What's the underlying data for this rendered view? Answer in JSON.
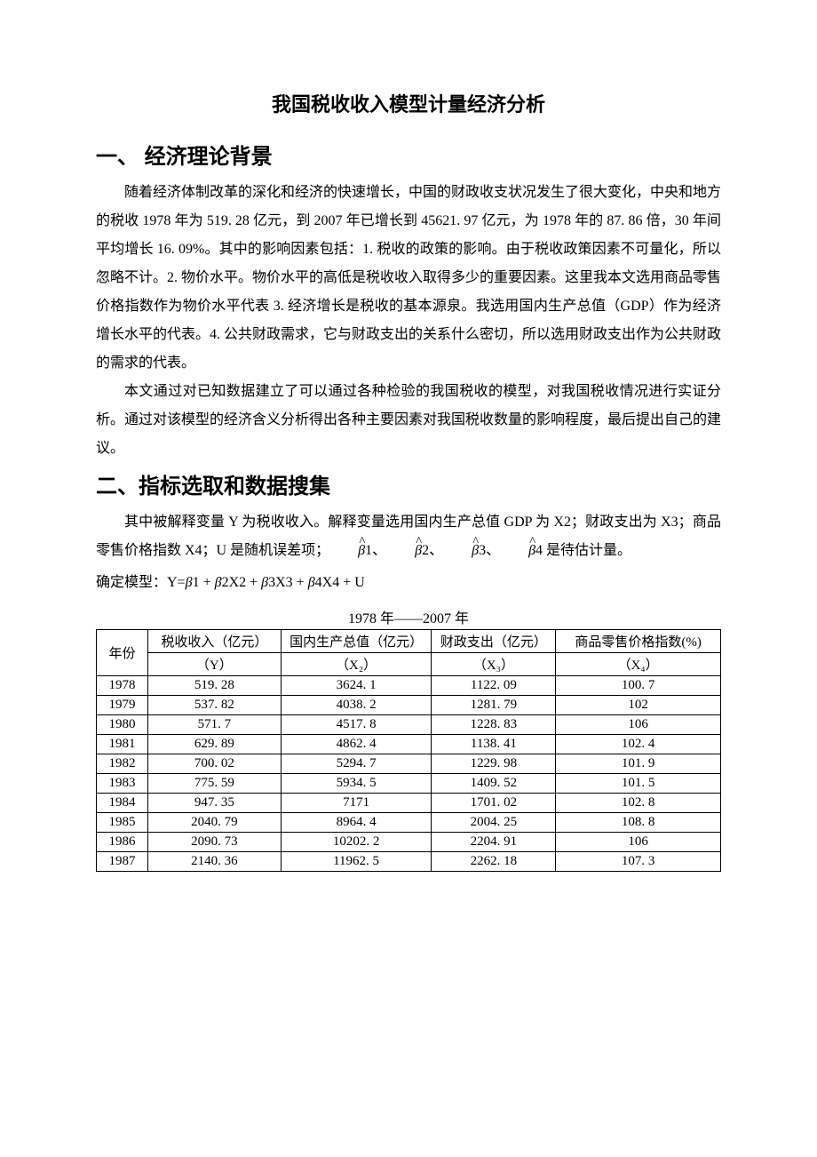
{
  "title": "我国税收收入模型计量经济分析",
  "section1": {
    "heading": "一、 经济理论背景",
    "p1": "随着经济体制改革的深化和经济的快速增长，中国的财政收支状况发生了很大变化，中央和地方的税收 1978 年为 519. 28 亿元，到 2007 年已增长到 45621. 97 亿元，为 1978 年的 87. 86 倍，30 年间平均增长 16. 09%。其中的影响因素包括：1. 税收的政策的影响。由于税收政策因素不可量化，所以忽略不计。2. 物价水平。物价水平的高低是税收收入取得多少的重要因素。这里我本文选用商品零售价格指数作为物价水平代表 3. 经济增长是税收的基本源泉。我选用国内生产总值（GDP）作为经济增长水平的代表。4. 公共财政需求，它与财政支出的关系什么密切，所以选用财政支出作为公共财政的需求的代表。",
    "p2": "本文通过对已知数据建立了可以通过各种检验的我国税收的模型，对我国税收情况进行实证分析。通过对该模型的经济含义分析得出各种主要因素对我国税收数量的影响程度，最后提出自己的建议。"
  },
  "section2": {
    "heading": "二、指标选取和数据搜集",
    "p1_pre": "其中被解释变量 Y 为税收收入。解释变量选用国内生产总值 GDP 为 X2；财政支出为 X3；商品零售价格指数 X4；U 是随机误差项；",
    "p1_mid": "1、",
    "p1_mid2": "2、",
    "p1_mid3": "3、",
    "p1_mid4": "4 是待估计量。",
    "model_label": "确定模型：Y=",
    "model_b1": "1 + ",
    "model_b2": "2X2 + ",
    "model_b3": "3X3 + ",
    "model_b4": "4X4 + U",
    "beta": "β"
  },
  "table": {
    "caption": "1978 年——2007 年",
    "headers": {
      "year": "年份",
      "y_label": "税收收入（亿元）",
      "x2_label": "国内生产总值（亿元）",
      "x3_label": "财政支出（亿元）",
      "x4_label": "商品零售价格指数(%)",
      "y_sym": "（Y）",
      "x2_sym": "（X₂）",
      "x3_sym": "（X₃）",
      "x4_sym": "（X₄）"
    },
    "col_widths": [
      "58px",
      "150px",
      "170px",
      "140px",
      "186px"
    ],
    "rows": [
      {
        "year": "1978",
        "y": "519. 28",
        "x2": "3624. 1",
        "x3": "1122. 09",
        "x4": "100. 7"
      },
      {
        "year": "1979",
        "y": "537. 82",
        "x2": "4038. 2",
        "x3": "1281. 79",
        "x4": "102"
      },
      {
        "year": "1980",
        "y": "571. 7",
        "x2": "4517. 8",
        "x3": "1228. 83",
        "x4": "106"
      },
      {
        "year": "1981",
        "y": "629. 89",
        "x2": "4862. 4",
        "x3": "1138. 41",
        "x4": "102. 4"
      },
      {
        "year": "1982",
        "y": "700. 02",
        "x2": "5294. 7",
        "x3": "1229. 98",
        "x4": "101. 9"
      },
      {
        "year": "1983",
        "y": "775. 59",
        "x2": "5934. 5",
        "x3": "1409. 52",
        "x4": "101. 5"
      },
      {
        "year": "1984",
        "y": "947. 35",
        "x2": "7171",
        "x3": "1701. 02",
        "x4": "102. 8"
      },
      {
        "year": "1985",
        "y": "2040. 79",
        "x2": "8964. 4",
        "x3": "2004. 25",
        "x4": "108. 8"
      },
      {
        "year": "1986",
        "y": "2090. 73",
        "x2": "10202. 2",
        "x3": "2204. 91",
        "x4": "106"
      },
      {
        "year": "1987",
        "y": "2140. 36",
        "x2": "11962. 5",
        "x3": "2262. 18",
        "x4": "107. 3"
      }
    ]
  },
  "styling": {
    "body_width": 920,
    "body_padding": [
      100,
      108,
      40,
      108
    ],
    "title_fontsize": 22,
    "heading_fontsize": 24,
    "body_fontsize": 16,
    "table_fontsize": 15,
    "line_height": 2.0,
    "text_color": "#000000",
    "background_color": "#ffffff",
    "border_color": "#000000",
    "font_body": "SimSun",
    "font_heading": "SimHei"
  }
}
